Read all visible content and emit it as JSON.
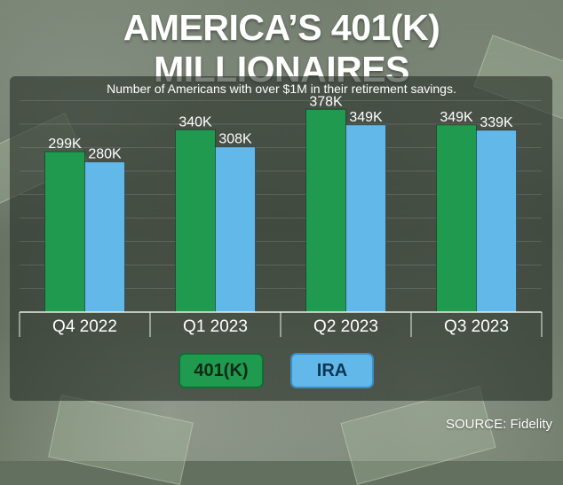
{
  "header": {
    "title": "AMERICA’S 401(K) MILLIONAIRES",
    "subtitle": "Number of Americans with over $1M in their retirement savings."
  },
  "chart_data": {
    "type": "bar",
    "title": "AMERICA’S 401(K) MILLIONAIRES",
    "subtitle": "Number of Americans with over $1M in their retirement savings.",
    "categories": [
      "Q4 2022",
      "Q1 2023",
      "Q2 2023",
      "Q3 2023"
    ],
    "series": [
      {
        "name": "401(K)",
        "values": [
          299,
          340,
          378,
          349
        ],
        "labels": [
          "299K",
          "340K",
          "378K",
          "349K"
        ],
        "color": "#1f9a4e"
      },
      {
        "name": "IRA",
        "values": [
          280,
          308,
          349,
          339
        ],
        "labels": [
          "280K",
          "308K",
          "349K",
          "339K"
        ],
        "color": "#63b8ea"
      }
    ],
    "xlabel": "",
    "ylabel": "",
    "ylim": [
      0,
      400
    ],
    "grid": true,
    "legend_placement": "bottom-center"
  },
  "legend": {
    "items": [
      "401(K)",
      "IRA"
    ]
  },
  "footer": {
    "source": "SOURCE: Fidelity"
  },
  "colors": {
    "series_401k": "#1f9a4e",
    "series_ira": "#63b8ea",
    "text": "#ffffff"
  }
}
